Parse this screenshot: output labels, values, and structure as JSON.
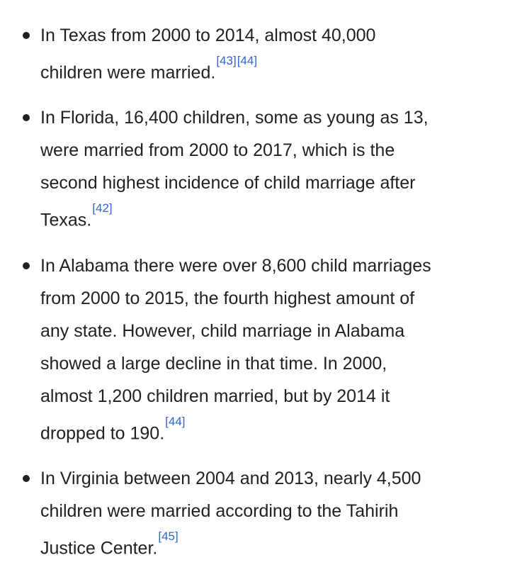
{
  "list": {
    "items": [
      {
        "lines": [
          "In Texas from 2000 to 2014, almost 40,000",
          "children were married."
        ],
        "refs": [
          "[43]",
          "[44]"
        ]
      },
      {
        "lines": [
          "In Florida, 16,400 children, some as young as 13,",
          "were married from 2000 to 2017, which is the",
          "second highest incidence of child marriage after",
          "Texas."
        ],
        "refs": [
          "[42]"
        ]
      },
      {
        "lines": [
          "In Alabama there were over 8,600 child marriages",
          "from 2000 to 2015, the fourth highest amount of",
          "any state. However, child marriage in Alabama",
          "showed a large decline in that time. In 2000,",
          "almost 1,200 children married, but by 2014 it",
          "dropped to 190."
        ],
        "refs": [
          "[44]"
        ]
      },
      {
        "lines": [
          "In Virginia between 2004 and 2013, nearly 4,500",
          "children were married according to the Tahirih",
          "Justice Center."
        ],
        "refs": [
          "[45]"
        ]
      }
    ]
  }
}
